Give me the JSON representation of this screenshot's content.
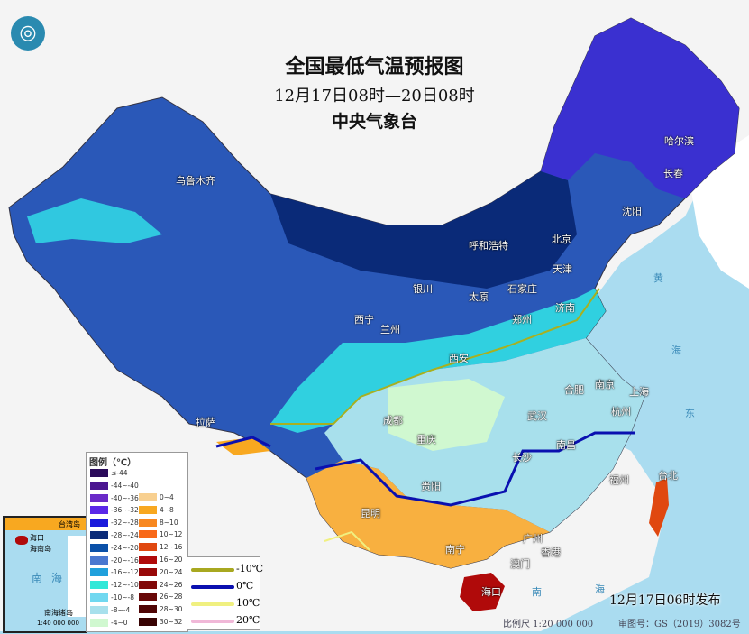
{
  "title": "全国最低气温预报图",
  "period": "12月17日08时—20日08时",
  "issuer": "中央气象台",
  "issued": "12月17日06时发布",
  "scale": "比例尺 1:20 000 000",
  "map_no": "审图号：GS（2019）3082号",
  "legend": {
    "title": "图例（℃）",
    "cold": [
      {
        "label": "≤-44",
        "color": "#2a0a5a"
      },
      {
        "label": "-44~-40",
        "color": "#4a1590"
      },
      {
        "label": "-40~-36",
        "color": "#6a2ac8"
      },
      {
        "label": "-36~-32",
        "color": "#5a28e8"
      },
      {
        "label": "-32~-28",
        "color": "#1a1adc"
      },
      {
        "label": "-28~-24",
        "color": "#0a2a78"
      },
      {
        "label": "-24~-20",
        "color": "#0a50a8"
      },
      {
        "label": "-20~-16",
        "color": "#4a78d0"
      },
      {
        "label": "-16~-12",
        "color": "#20a0dc"
      },
      {
        "label": "-12~-10",
        "color": "#30e8d8"
      },
      {
        "label": "-10~-8",
        "color": "#70d8f0"
      },
      {
        "label": "-8~-4",
        "color": "#a8e0ec"
      },
      {
        "label": "-4~0",
        "color": "#d0f8d0"
      }
    ],
    "warm": [
      {
        "label": "0~4",
        "color": "#f8d090"
      },
      {
        "label": "4~8",
        "color": "#f8a820"
      },
      {
        "label": "8~10",
        "color": "#f88820"
      },
      {
        "label": "10~12",
        "color": "#f86818"
      },
      {
        "label": "12~16",
        "color": "#e04810"
      },
      {
        "label": "16~20",
        "color": "#b00a0a"
      },
      {
        "label": "20~24",
        "color": "#980808"
      },
      {
        "label": "24~26",
        "color": "#800808"
      },
      {
        "label": "26~28",
        "color": "#680808"
      },
      {
        "label": "28~30",
        "color": "#500505"
      },
      {
        "label": "30~32",
        "color": "#380303"
      }
    ],
    "lines": [
      {
        "label": "-10℃",
        "color": "#a8a820"
      },
      {
        "label": "0℃",
        "color": "#0a10b0"
      },
      {
        "label": "10℃",
        "color": "#f0f080"
      },
      {
        "label": "20℃",
        "color": "#f0b8d8"
      }
    ]
  },
  "cities": [
    {
      "n": "乌鲁木齐"
    },
    {
      "n": "哈尔滨"
    },
    {
      "n": "长春"
    },
    {
      "n": "沈阳"
    },
    {
      "n": "呼和浩特"
    },
    {
      "n": "北京"
    },
    {
      "n": "天津"
    },
    {
      "n": "石家庄"
    },
    {
      "n": "太原"
    },
    {
      "n": "银川"
    },
    {
      "n": "济南"
    },
    {
      "n": "西宁"
    },
    {
      "n": "兰州"
    },
    {
      "n": "郑州"
    },
    {
      "n": "西安"
    },
    {
      "n": "合肥"
    },
    {
      "n": "南京"
    },
    {
      "n": "上海"
    },
    {
      "n": "成都"
    },
    {
      "n": "武汉"
    },
    {
      "n": "杭州"
    },
    {
      "n": "重庆"
    },
    {
      "n": "拉萨"
    },
    {
      "n": "南昌"
    },
    {
      "n": "长沙"
    },
    {
      "n": "福州"
    },
    {
      "n": "台北"
    },
    {
      "n": "贵阳"
    },
    {
      "n": "昆明"
    },
    {
      "n": "南宁"
    },
    {
      "n": "广州"
    },
    {
      "n": "香港"
    },
    {
      "n": "澳门"
    },
    {
      "n": "海口"
    }
  ],
  "seas": [
    {
      "n": "黄"
    },
    {
      "n": "海"
    },
    {
      "n": "东"
    },
    {
      "n": "南"
    },
    {
      "n": "海"
    }
  ],
  "inset": {
    "labels": [
      "海口",
      "海南岛",
      "台湾岛",
      "南海",
      "南海诸岛",
      "1:40 000 000"
    ]
  }
}
